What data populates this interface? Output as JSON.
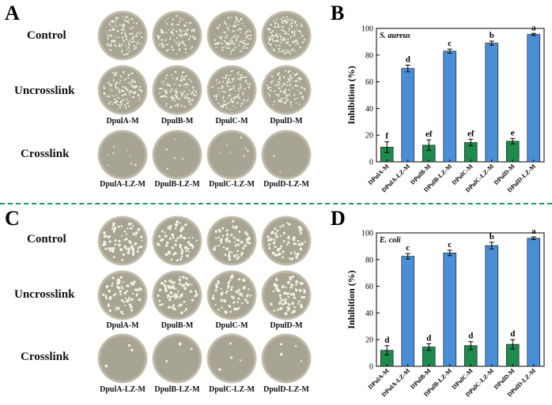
{
  "panels": {
    "A": {
      "letter": "A",
      "rows": [
        "Control",
        "Uncrosslink",
        "Crosslink"
      ],
      "labels_mid": [
        "DpulA-M",
        "DpulB-M",
        "DpulC-M",
        "DpulD-M"
      ],
      "labels_bottom": [
        "DpulA-LZ-M",
        "DpulB-LZ-M",
        "DpulC-LZ-M",
        "DpulD-LZ-M"
      ]
    },
    "C": {
      "letter": "C",
      "rows": [
        "Control",
        "Uncrosslink",
        "Crosslink"
      ],
      "labels_mid": [
        "DpulA-M",
        "DpulB-M",
        "DpulC-M",
        "DpulD-M"
      ],
      "labels_bottom": [
        "DpulA-LZ-M",
        "DpulB-LZ-M",
        "DpulC-LZ-M",
        "DpulD-LZ-M"
      ]
    },
    "B_letter": "B",
    "D_letter": "D"
  },
  "colors": {
    "green": "#1e8a4c",
    "blue": "#4a8fd6",
    "divider": "#1a9a5a"
  },
  "chart_data": [
    {
      "type": "bar",
      "panel": "B",
      "title": "S. aureus",
      "xlabel": "",
      "ylabel": "Inhibition (%)",
      "ylim": [
        0,
        100
      ],
      "yticks": [
        0,
        20,
        40,
        60,
        80,
        100
      ],
      "categories": [
        "DPulA-M",
        "DPulA-LZ-M",
        "DPulB-M",
        "DPulB-LZ-M",
        "DPulC-M",
        "DPulC-LZ-M",
        "DPulD-M",
        "DPulD-LZ-M"
      ],
      "values": [
        11,
        70,
        12.5,
        83,
        14.5,
        89,
        15.5,
        95.5
      ],
      "errors": [
        4,
        2.5,
        4,
        1.5,
        2.5,
        1.5,
        2,
        0.8
      ],
      "sig_letters": [
        "f",
        "d",
        "ef",
        "c",
        "ef",
        "b",
        "e",
        "a"
      ],
      "bar_colors": [
        "green",
        "blue",
        "green",
        "blue",
        "green",
        "blue",
        "green",
        "blue"
      ]
    },
    {
      "type": "bar",
      "panel": "D",
      "title": "E. coli",
      "xlabel": "",
      "ylabel": "Inhibition (%)",
      "ylim": [
        0,
        100
      ],
      "yticks": [
        0,
        20,
        40,
        60,
        80,
        100
      ],
      "categories": [
        "DPulA-M",
        "DPulA-LZ-M",
        "DPulB-M",
        "DPulB-LZ-M",
        "DPulC-M",
        "DPulC-LZ-M",
        "DPulD-M",
        "DPulD-LZ-M"
      ],
      "values": [
        12,
        82.5,
        14.5,
        85,
        15.5,
        90.5,
        16.5,
        96
      ],
      "errors": [
        3.5,
        2,
        2.5,
        2,
        3,
        2.5,
        3.5,
        1
      ],
      "sig_letters": [
        "d",
        "c",
        "d",
        "c",
        "d",
        "b",
        "d",
        "a"
      ],
      "bar_colors": [
        "green",
        "blue",
        "green",
        "blue",
        "green",
        "blue",
        "green",
        "blue"
      ]
    }
  ]
}
